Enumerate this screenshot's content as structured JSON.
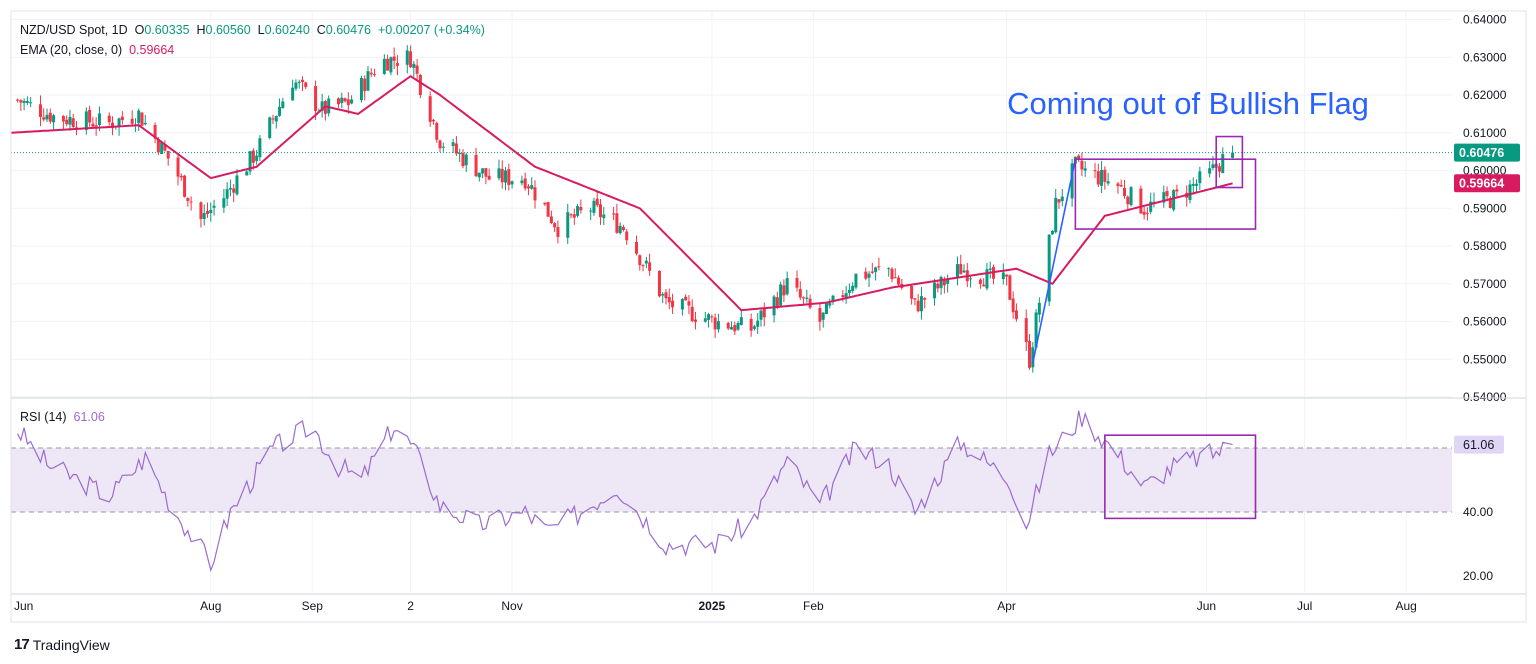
{
  "header": {
    "symbol": "NZD/USD Spot, 1D",
    "open_label": "O",
    "open": "0.60335",
    "high_label": "H",
    "high": "0.60560",
    "low_label": "L",
    "low": "0.60240",
    "close_label": "C",
    "close": "0.60476",
    "change": "+0.00207 (+0.34%)"
  },
  "ema_legend": {
    "label": "EMA (20, close, 0)",
    "value": "0.59664"
  },
  "rsi_legend": {
    "label": "RSI (14)",
    "value": "61.06"
  },
  "annotation": "Coming out of Bullish Flag",
  "brand": "TradingView",
  "colors": {
    "up": "#089981",
    "down": "#f23645",
    "ema": "#d81b60",
    "rsi": "#9c6bd0",
    "trendline": "#2962ff",
    "box": "#9c27b0",
    "annotation": "#2962ff",
    "rsi_band": "#ede7f6"
  },
  "chart_data": [
    {
      "type": "candlestick",
      "title": "NZD/USD Spot, 1D",
      "y_axis_ticks": [
        "0.64000",
        "0.63000",
        "0.62000",
        "0.61000",
        "0.60000",
        "0.59000",
        "0.58000",
        "0.57000",
        "0.56000",
        "0.55000",
        "0.54000"
      ],
      "ylim": [
        0.54,
        0.642
      ],
      "x_axis_ticks": [
        "Jun",
        "Aug",
        "Sep",
        "2",
        "Nov",
        "2025",
        "Feb",
        "Apr",
        "Jun",
        "Jul",
        "Aug"
      ],
      "x_range": [
        "2024-06-01",
        "2025-08-15"
      ],
      "last_price_label": "0.60476",
      "ema_label": "0.59664",
      "anchors": [
        {
          "date": "2024-06-01",
          "value": 0.6195
        },
        {
          "date": "2024-06-15",
          "value": 0.614
        },
        {
          "date": "2024-07-01",
          "value": 0.6125
        },
        {
          "date": "2024-07-10",
          "value": 0.615
        },
        {
          "date": "2024-07-20",
          "value": 0.602
        },
        {
          "date": "2024-07-29",
          "value": 0.587
        },
        {
          "date": "2024-08-05",
          "value": 0.593
        },
        {
          "date": "2024-08-15",
          "value": 0.605
        },
        {
          "date": "2024-08-26",
          "value": 0.624
        },
        {
          "date": "2024-09-04",
          "value": 0.616
        },
        {
          "date": "2024-09-12",
          "value": 0.618
        },
        {
          "date": "2024-09-22",
          "value": 0.629
        },
        {
          "date": "2024-10-01",
          "value": 0.63
        },
        {
          "date": "2024-10-10",
          "value": 0.608
        },
        {
          "date": "2024-10-25",
          "value": 0.598
        },
        {
          "date": "2024-11-05",
          "value": 0.598
        },
        {
          "date": "2024-11-15",
          "value": 0.585
        },
        {
          "date": "2024-11-25",
          "value": 0.59
        },
        {
          "date": "2024-12-05",
          "value": 0.585
        },
        {
          "date": "2024-12-18",
          "value": 0.565
        },
        {
          "date": "2025-01-02",
          "value": 0.56
        },
        {
          "date": "2025-01-13",
          "value": 0.558
        },
        {
          "date": "2025-01-24",
          "value": 0.57
        },
        {
          "date": "2025-02-03",
          "value": 0.56
        },
        {
          "date": "2025-02-14",
          "value": 0.572
        },
        {
          "date": "2025-02-24",
          "value": 0.574
        },
        {
          "date": "2025-03-04",
          "value": 0.564
        },
        {
          "date": "2025-03-18",
          "value": 0.574
        },
        {
          "date": "2025-04-01",
          "value": 0.57
        },
        {
          "date": "2025-04-08",
          "value": 0.55
        },
        {
          "date": "2025-04-16",
          "value": 0.591
        },
        {
          "date": "2025-04-22",
          "value": 0.601
        },
        {
          "date": "2025-05-05",
          "value": 0.596
        },
        {
          "date": "2025-05-13",
          "value": 0.59
        },
        {
          "date": "2025-05-23",
          "value": 0.593
        },
        {
          "date": "2025-06-02",
          "value": 0.599
        },
        {
          "date": "2025-06-06",
          "value": 0.603
        },
        {
          "date": "2025-06-09",
          "value": 0.6048
        }
      ],
      "ema_anchors": [
        {
          "date": "2024-06-01",
          "value": 0.61
        },
        {
          "date": "2024-07-10",
          "value": 0.612
        },
        {
          "date": "2024-08-01",
          "value": 0.598
        },
        {
          "date": "2024-08-15",
          "value": 0.601
        },
        {
          "date": "2024-09-05",
          "value": 0.617
        },
        {
          "date": "2024-09-15",
          "value": 0.615
        },
        {
          "date": "2024-10-01",
          "value": 0.625
        },
        {
          "date": "2024-10-10",
          "value": 0.62
        },
        {
          "date": "2024-11-08",
          "value": 0.601
        },
        {
          "date": "2024-12-10",
          "value": 0.59
        },
        {
          "date": "2025-01-10",
          "value": 0.563
        },
        {
          "date": "2025-02-05",
          "value": 0.565
        },
        {
          "date": "2025-02-25",
          "value": 0.569
        },
        {
          "date": "2025-04-04",
          "value": 0.574
        },
        {
          "date": "2025-04-15",
          "value": 0.57
        },
        {
          "date": "2025-05-01",
          "value": 0.588
        },
        {
          "date": "2025-06-09",
          "value": 0.5966
        }
      ],
      "trendline": [
        {
          "date": "2025-04-09",
          "value": 0.549
        },
        {
          "date": "2025-04-22",
          "value": 0.603
        }
      ],
      "boxes": [
        {
          "from": "2025-04-22",
          "to": "2025-06-16",
          "top": 0.603,
          "bottom": 0.5845
        },
        {
          "from": "2025-06-04",
          "to": "2025-06-12",
          "top": 0.609,
          "bottom": 0.5955
        }
      ]
    },
    {
      "type": "line",
      "title": "RSI (14)",
      "y_axis_ticks": [
        "20.00",
        "40.00",
        "61.06"
      ],
      "ylim": [
        15,
        75
      ],
      "band": [
        40,
        60
      ],
      "last_value_label": "61.06",
      "anchors": [
        {
          "date": "2024-06-01",
          "value": 68
        },
        {
          "date": "2024-06-12",
          "value": 55
        },
        {
          "date": "2024-07-01",
          "value": 45
        },
        {
          "date": "2024-07-12",
          "value": 57
        },
        {
          "date": "2024-07-20",
          "value": 42
        },
        {
          "date": "2024-08-01",
          "value": 24
        },
        {
          "date": "2024-08-07",
          "value": 40
        },
        {
          "date": "2024-08-20",
          "value": 60
        },
        {
          "date": "2024-09-01",
          "value": 67
        },
        {
          "date": "2024-09-08",
          "value": 55
        },
        {
          "date": "2024-09-16",
          "value": 50
        },
        {
          "date": "2024-09-26",
          "value": 67
        },
        {
          "date": "2024-10-02",
          "value": 60
        },
        {
          "date": "2024-10-10",
          "value": 42
        },
        {
          "date": "2024-10-22",
          "value": 36
        },
        {
          "date": "2024-11-05",
          "value": 40
        },
        {
          "date": "2024-11-12",
          "value": 34
        },
        {
          "date": "2024-11-22",
          "value": 40
        },
        {
          "date": "2024-12-03",
          "value": 48
        },
        {
          "date": "2024-12-18",
          "value": 30
        },
        {
          "date": "2025-01-02",
          "value": 30
        },
        {
          "date": "2025-01-13",
          "value": 37
        },
        {
          "date": "2025-01-24",
          "value": 56
        },
        {
          "date": "2025-02-03",
          "value": 42
        },
        {
          "date": "2025-02-14",
          "value": 60
        },
        {
          "date": "2025-02-24",
          "value": 55
        },
        {
          "date": "2025-03-04",
          "value": 40
        },
        {
          "date": "2025-03-18",
          "value": 62
        },
        {
          "date": "2025-04-02",
          "value": 50
        },
        {
          "date": "2025-04-07",
          "value": 36
        },
        {
          "date": "2025-04-14",
          "value": 58
        },
        {
          "date": "2025-04-24",
          "value": 70
        },
        {
          "date": "2025-05-05",
          "value": 58
        },
        {
          "date": "2025-05-13",
          "value": 48
        },
        {
          "date": "2025-05-23",
          "value": 55
        },
        {
          "date": "2025-06-02",
          "value": 58
        },
        {
          "date": "2025-06-09",
          "value": 61
        }
      ],
      "box": {
        "from": "2025-05-01",
        "to": "2025-06-16",
        "top": 64,
        "bottom": 38
      }
    }
  ]
}
